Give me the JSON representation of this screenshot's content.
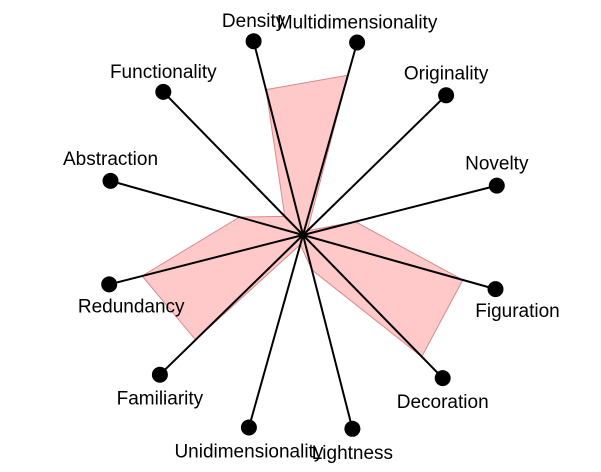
{
  "chart_data": {
    "type": "radar",
    "title": "",
    "axes": [
      "Density",
      "Multidimensionality",
      "Originality",
      "Novelty",
      "Figuration",
      "Decoration",
      "Lightness",
      "Unidimensionality",
      "Familiarity",
      "Redundancy",
      "Abstraction",
      "Functionality"
    ],
    "series": [
      {
        "values": [
          0.75,
          0.83,
          0.03,
          0.27,
          0.83,
          0.85,
          0.18,
          0.05,
          0.75,
          0.83,
          0.33,
          0.13
        ]
      }
    ],
    "range": [
      0,
      1
    ],
    "grid": false,
    "colors": {
      "fill": "#ffbfbf",
      "fill_opacity": 0.85,
      "outline": "#d98a8a",
      "spoke": "#000000",
      "marker": "#000000"
    }
  }
}
